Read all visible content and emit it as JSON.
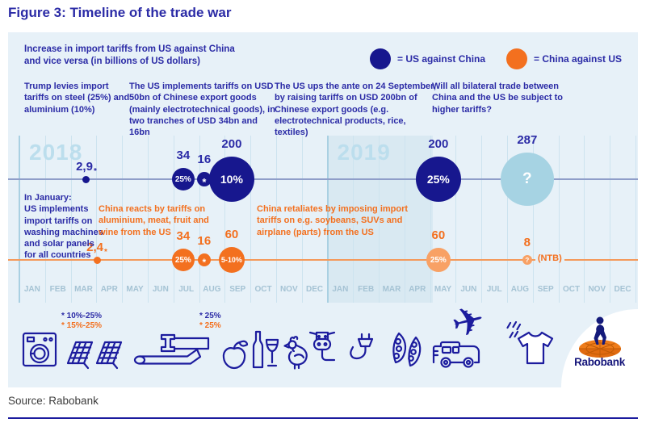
{
  "title": "Figure 3: Timeline of the trade war",
  "subtitle": "Increase in import tariffs from US against China and vice versa (in billions of US dollars)",
  "legend": {
    "us": {
      "label": "= US against China"
    },
    "china": {
      "label": "= China against US"
    }
  },
  "annotations": {
    "top": [
      {
        "text": "Trump levies import tariffs on steel (25%) and aluminium (10%)"
      },
      {
        "text": "The US implements tariffs on USD 50bn of Chinese export goods (mainly electrotechnical goods), in two tranches of USD 34bn and 16bn"
      },
      {
        "text": "The US ups the ante on 24 September, by raising tariffs on USD 200bn of Chinese export goods (e.g. electrotechnical products, rice, textiles)"
      },
      {
        "text": "Will all bilateral trade between China and the US be subject to higher tariffs?"
      }
    ],
    "middle": [
      {
        "text": "In January:\nUS implements\nimport tariffs on\nwashing machines\nand solar panels\nfor all countries"
      },
      {
        "text": "China reacts by tariffs on aluminium, meat, fruit and wine from the US"
      },
      {
        "text": "China retaliates by imposing import tariffs on e.g. soybeans, SUVs and airplane (parts) from the US"
      }
    ]
  },
  "chart_data": {
    "type": "timeline",
    "unit": "billions of US dollars",
    "years": [
      {
        "label": "2018",
        "start_month": 0
      },
      {
        "label": "2019",
        "start_month": 12
      }
    ],
    "months": [
      "JAN",
      "FEB",
      "MAR",
      "APR",
      "MAY",
      "JUN",
      "JUL",
      "AUG",
      "SEP",
      "OCT",
      "NOV",
      "DEC",
      "JAN",
      "FEB",
      "MAR",
      "APR",
      "MAY",
      "JUN",
      "JUL",
      "AUG",
      "SEP",
      "OCT",
      "NOV",
      "DEC"
    ],
    "highlight_band_months": [
      12,
      16.1
    ],
    "series": [
      {
        "name": "US against China",
        "events": [
          {
            "pos": 2.61,
            "value": "2,9",
            "footnote": "*",
            "type": "dot"
          },
          {
            "pos": 6.38,
            "value": "34",
            "rate": "25%",
            "r": 14
          },
          {
            "pos": 7.2,
            "value": "16",
            "rate": "*",
            "r": 9
          },
          {
            "pos": 8.27,
            "value": "200",
            "rate": "10%",
            "r": 28
          },
          {
            "pos": 16.32,
            "value": "200",
            "rate": "25%",
            "r": 28
          },
          {
            "pos": 19.78,
            "value": "287",
            "rate": "?",
            "r": 33,
            "projected": true
          }
        ]
      },
      {
        "name": "China against US",
        "events": [
          {
            "pos": 3.02,
            "value": "2,4",
            "footnote": "*",
            "type": "dot"
          },
          {
            "pos": 6.38,
            "value": "34",
            "rate": "25%",
            "r": 14
          },
          {
            "pos": 7.2,
            "value": "16",
            "rate": "*",
            "r": 8
          },
          {
            "pos": 8.27,
            "value": "60",
            "rate": "5-10%",
            "r": 16
          },
          {
            "pos": 16.32,
            "value": "60",
            "rate": "25%",
            "r": 15,
            "projected": true
          },
          {
            "pos": 19.78,
            "value": "8",
            "rate": "?",
            "r": 6,
            "projected": true,
            "suffix": "(NTB)"
          }
        ]
      }
    ]
  },
  "footnotes": [
    {
      "blue": "* 10%-25%",
      "orange": "* 15%-25%"
    },
    {
      "blue": "* 25%",
      "orange": "* 25%"
    }
  ],
  "icons": [
    "washing-machine",
    "solar-panels",
    "steel",
    "apple",
    "wine",
    "poultry",
    "cattle",
    "electric-plug",
    "soybeans",
    "suv",
    "airplane",
    "t-shirt"
  ],
  "logo": {
    "brand": "Rabobank"
  },
  "source": "Source: Rabobank",
  "colors": {
    "ink": "#2b2ba6",
    "navy": "#17178e",
    "orange": "#f3701f",
    "projBlue": "#a6d3e3",
    "projOrange": "#f8a165",
    "panelBg": "#e7f1f8",
    "band": "#d9e9f2",
    "grid": "#cde3ef",
    "yearLine": "#a9d0e2",
    "usLine": "#8f9ec9",
    "chinaLine": "#f4995a",
    "monthText": "#a5c3d4",
    "yearText": "#bcdeed",
    "rule": "#1b1b9e",
    "iconStroke": "#1c1c9e"
  }
}
